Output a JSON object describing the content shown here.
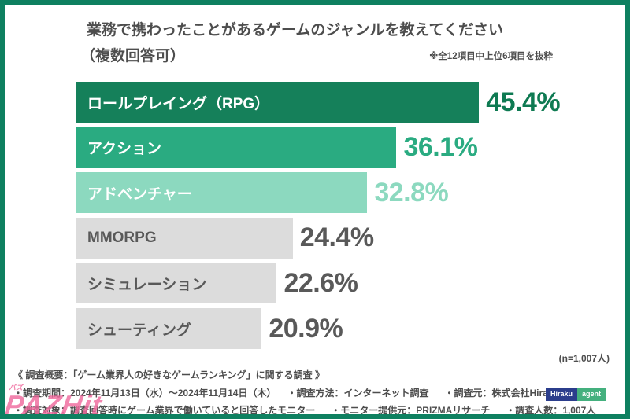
{
  "frame": {
    "border_color": "#0e8060",
    "background": "#ffffff"
  },
  "header": {
    "title_line1": "業務で携わったことがあるゲームのジャンルを教えてください",
    "title_line2": "（複数回答可）",
    "note": "※全12項目中上位6項目を抜粋",
    "title_color": "#4d4d4d"
  },
  "chart_data": {
    "type": "bar",
    "orientation": "horizontal",
    "title": "業務で携わったことがあるゲームのジャンルを教えてください（複数回答可）",
    "categories": [
      "ロールプレイング（RPG）",
      "アクション",
      "アドベンチャー",
      "MMORPG",
      "シミュレーション",
      "シューティング"
    ],
    "values": [
      45.4,
      36.1,
      32.8,
      24.4,
      22.6,
      20.9
    ],
    "value_labels": [
      "45.4%",
      "36.1%",
      "32.8%",
      "24.4%",
      "22.6%",
      "20.9%"
    ],
    "bar_colors": [
      "#15805a",
      "#2aab81",
      "#8cd9bf",
      "#dcdcdc",
      "#dcdcdc",
      "#dcdcdc"
    ],
    "label_colors": [
      "#ffffff",
      "#ffffff",
      "#ffffff",
      "#595959",
      "#595959",
      "#595959"
    ],
    "value_colors": [
      "#0e7a52",
      "#2aab81",
      "#8cd9bf",
      "#595959",
      "#595959",
      "#595959"
    ],
    "xlim": [
      0,
      50
    ],
    "grid": false,
    "legend": false,
    "sample_note": "(n=1,007人)"
  },
  "footer": {
    "summary": "《 調査概要：「ゲーム業界人の好きなゲームランキング」に関する調査 》",
    "line2": [
      "・調査期間：2024年11月13日（水）〜2024年11月14日（木）",
      "・調査方法：インターネット調査",
      "・調査元：株式会社Hiraku agent"
    ],
    "line3": [
      "・調査対象：調査回答時にゲーム業界で働いていると回答したモニター",
      "・モニター提供元：PRIZMAリサーチ",
      "・調査人数：1,007人"
    ]
  },
  "logo": {
    "left_text": "Hiraku",
    "right_text": "agent",
    "left_bg": "#2b3d8c",
    "right_bg": "#44b07e"
  },
  "watermark": {
    "small_text": "バズ",
    "text": "PAZHit",
    "color": "#f0679c"
  }
}
